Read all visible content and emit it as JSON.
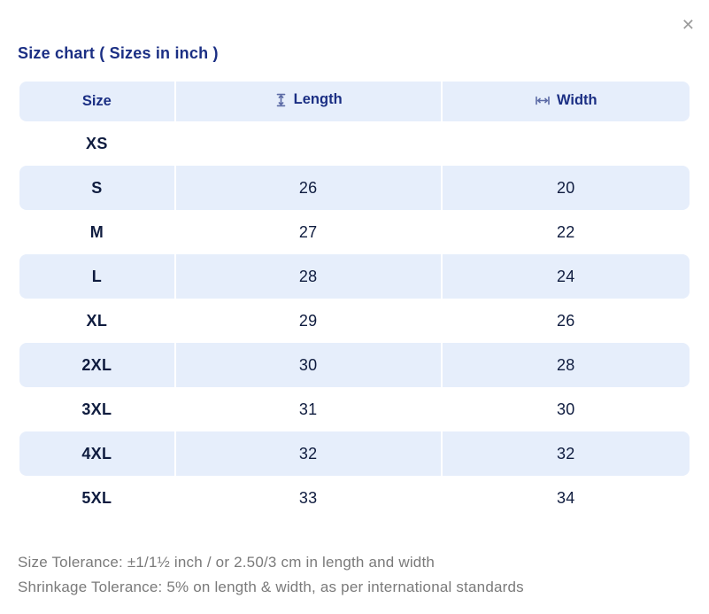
{
  "dialog": {
    "title": "Size chart ( Sizes in inch )",
    "close_glyph": "✕"
  },
  "table": {
    "columns": [
      {
        "label": "Size",
        "icon": null
      },
      {
        "label": "Length",
        "icon": "length-icon"
      },
      {
        "label": "Width",
        "icon": "width-icon"
      }
    ],
    "rows": [
      {
        "size": "XS",
        "length": "",
        "width": ""
      },
      {
        "size": "S",
        "length": "26",
        "width": "20"
      },
      {
        "size": "M",
        "length": "27",
        "width": "22"
      },
      {
        "size": "L",
        "length": "28",
        "width": "24"
      },
      {
        "size": "XL",
        "length": "29",
        "width": "26"
      },
      {
        "size": "2XL",
        "length": "30",
        "width": "28"
      },
      {
        "size": "3XL",
        "length": "31",
        "width": "30"
      },
      {
        "size": "4XL",
        "length": "32",
        "width": "32"
      },
      {
        "size": "5XL",
        "length": "33",
        "width": "34"
      }
    ]
  },
  "footer": {
    "size_tolerance": "Size Tolerance: ±1/1½ inch / or 2.50/3 cm in length and width",
    "shrinkage_tolerance": "Shrinkage Tolerance: 5% on length & width, as per international standards"
  },
  "colors": {
    "accent_blue": "#1b2f84",
    "cell_text_navy": "#0f1c3f",
    "row_highlight": "#e6eefb",
    "icon_slate": "#5b6aa5",
    "footer_gray": "#7a7a7a",
    "close_gray": "#9b9b9b"
  }
}
